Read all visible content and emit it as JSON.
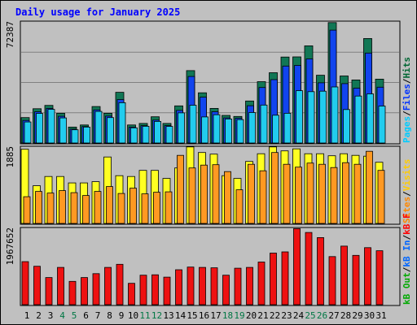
{
  "chart_data": [
    {
      "type": "bar",
      "title": "Daily usage for January 2025",
      "panel": "hits-files-pages",
      "categories": [
        "1",
        "2",
        "3",
        "4",
        "5",
        "6",
        "7",
        "8",
        "9",
        "10",
        "11",
        "12",
        "13",
        "14",
        "15",
        "16",
        "17",
        "18",
        "19",
        "20",
        "21",
        "22",
        "23",
        "24",
        "25",
        "26",
        "27",
        "28",
        "29",
        "30",
        "31"
      ],
      "weekend_days": [
        "4",
        "5",
        "11",
        "12",
        "18",
        "19",
        "25",
        "26"
      ],
      "ymax_label": "72387",
      "ylim": [
        0,
        72387
      ],
      "legend": [
        {
          "label": "Hits",
          "color": "#006633"
        },
        {
          "label": "Files",
          "color": "#0033ff"
        },
        {
          "label": "Pages",
          "color": "#00ccff"
        }
      ],
      "series": [
        {
          "name": "Hits",
          "color": "#117755",
          "values": [
            15200,
            20500,
            22500,
            17800,
            9500,
            10800,
            21800,
            17800,
            30300,
            10800,
            11700,
            15700,
            11700,
            22200,
            43300,
            30000,
            20700,
            16500,
            15900,
            25100,
            36700,
            42000,
            51400,
            51500,
            58100,
            40500,
            72000,
            40100,
            37700,
            62500,
            38200
          ]
        },
        {
          "name": "Files",
          "color": "#1144ee",
          "values": [
            13500,
            18700,
            20700,
            16000,
            8300,
            9800,
            19800,
            16100,
            26000,
            9500,
            10400,
            13700,
            10400,
            19500,
            39800,
            27400,
            18700,
            15000,
            14800,
            22300,
            33200,
            37900,
            46000,
            46400,
            50300,
            36000,
            67500,
            35500,
            32800,
            53800,
            33400
          ]
        },
        {
          "name": "Pages",
          "color": "#22ccee",
          "values": [
            12600,
            17700,
            20100,
            15000,
            7900,
            9500,
            18900,
            15200,
            24100,
            9100,
            10000,
            12900,
            9900,
            18000,
            22600,
            15600,
            16900,
            14400,
            14000,
            18200,
            22700,
            16600,
            17800,
            31300,
            30700,
            31000,
            33500,
            20000,
            28100,
            29400,
            22100
          ]
        }
      ]
    },
    {
      "type": "bar",
      "panel": "visits-sites",
      "categories": [
        "1",
        "2",
        "3",
        "4",
        "5",
        "6",
        "7",
        "8",
        "9",
        "10",
        "11",
        "12",
        "13",
        "14",
        "15",
        "16",
        "17",
        "18",
        "19",
        "20",
        "21",
        "22",
        "23",
        "24",
        "25",
        "26",
        "27",
        "28",
        "29",
        "30",
        "31"
      ],
      "ymax_label": "1885",
      "ylim": [
        0,
        1885
      ],
      "legend": [
        {
          "label": "Visits",
          "color": "#ffcc00"
        },
        {
          "label": "Sites",
          "color": "#ff8800"
        }
      ],
      "series": [
        {
          "name": "Visits",
          "color": "#ffff22",
          "values": [
            1830,
            930,
            1160,
            1160,
            1000,
            1000,
            1030,
            1640,
            1180,
            1160,
            1310,
            1310,
            1110,
            1370,
            1890,
            1750,
            1710,
            1180,
            1110,
            1530,
            1720,
            1890,
            1790,
            1840,
            1720,
            1720,
            1670,
            1720,
            1680,
            1660,
            1510
          ]
        },
        {
          "name": "Sites",
          "color": "#ff9922",
          "values": [
            660,
            790,
            750,
            810,
            760,
            690,
            790,
            910,
            740,
            870,
            730,
            770,
            780,
            1680,
            1370,
            1440,
            1450,
            1280,
            830,
            1460,
            1300,
            1750,
            1460,
            1390,
            1490,
            1460,
            1380,
            1500,
            1460,
            1780,
            1310
          ]
        }
      ]
    },
    {
      "type": "bar",
      "panel": "kbytes",
      "categories": [
        "1",
        "2",
        "3",
        "4",
        "5",
        "6",
        "7",
        "8",
        "9",
        "10",
        "11",
        "12",
        "13",
        "14",
        "15",
        "16",
        "17",
        "18",
        "19",
        "20",
        "21",
        "22",
        "23",
        "24",
        "25",
        "26",
        "27",
        "28",
        "29",
        "30",
        "31"
      ],
      "ymax_label": "1967652",
      "ylim": [
        0,
        1967652
      ],
      "legend": [
        {
          "label": "kB F",
          "color": "#ff0000"
        },
        {
          "label": "kB In",
          "color": "#0066ff"
        },
        {
          "label": "kB Out",
          "color": "#00aa00"
        }
      ],
      "series": [
        {
          "name": "kB F",
          "color": "#ee1111",
          "values": [
            1110000,
            990000,
            700000,
            960000,
            600000,
            700000,
            800000,
            960000,
            1040000,
            550000,
            760000,
            770000,
            710000,
            900000,
            970000,
            960000,
            950000,
            760000,
            940000,
            960000,
            1100000,
            1330000,
            1360000,
            1960000,
            1860000,
            1730000,
            1240000,
            1510000,
            1270000,
            1470000,
            1390000
          ]
        }
      ]
    }
  ]
}
